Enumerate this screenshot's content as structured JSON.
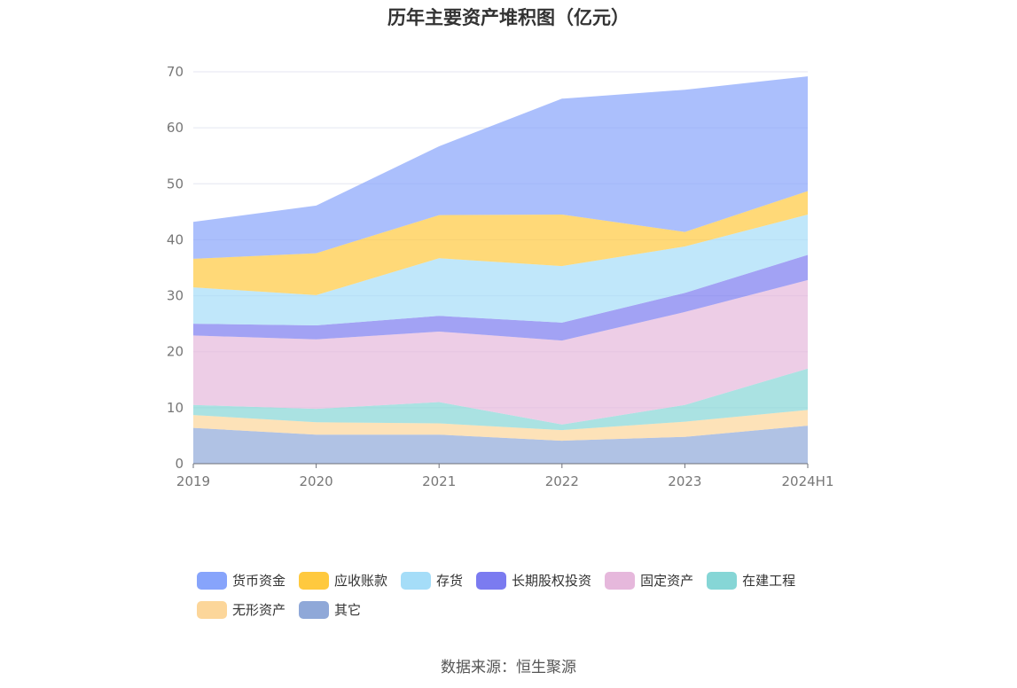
{
  "chart_data": {
    "type": "area",
    "stacked": true,
    "title": "历年主要资产堆积图（亿元）",
    "categories": [
      "2019",
      "2020",
      "2021",
      "2022",
      "2023",
      "2024H1"
    ],
    "ylim": [
      0,
      70
    ],
    "yticks": [
      0,
      10,
      20,
      30,
      40,
      50,
      60,
      70
    ],
    "grid": true,
    "legend_position": "bottom",
    "series": [
      {
        "name": "其它",
        "color": "#8fa8d8",
        "values": [
          6.4,
          5.2,
          5.2,
          4.1,
          4.8,
          6.8
        ]
      },
      {
        "name": "无形资产",
        "color": "#fcd69a",
        "values": [
          2.3,
          2.2,
          2.0,
          1.9,
          2.7,
          2.8
        ]
      },
      {
        "name": "在建工程",
        "color": "#86d6d6",
        "values": [
          1.8,
          2.4,
          3.8,
          1.0,
          3.0,
          7.4
        ]
      },
      {
        "name": "固定资产",
        "color": "#e6b8dc",
        "values": [
          12.4,
          12.4,
          12.6,
          15.0,
          16.6,
          15.8
        ]
      },
      {
        "name": "长期股权投资",
        "color": "#7b7bf0",
        "values": [
          2.1,
          2.5,
          2.8,
          3.2,
          3.4,
          4.5
        ]
      },
      {
        "name": "存货",
        "color": "#a5ddf8",
        "values": [
          6.5,
          5.4,
          10.3,
          10.1,
          8.3,
          7.2
        ]
      },
      {
        "name": "应收账款",
        "color": "#ffc93e",
        "values": [
          5.1,
          7.5,
          7.7,
          9.2,
          2.6,
          4.2
        ]
      },
      {
        "name": "货币资金",
        "color": "#87a4fb",
        "values": [
          6.6,
          8.5,
          12.3,
          20.7,
          25.4,
          20.5
        ]
      }
    ]
  },
  "legend": {
    "row1": [
      "货币资金",
      "应收账款",
      "存货",
      "长期股权投资",
      "固定资产",
      "在建工程"
    ],
    "row2": [
      "无形资产",
      "其它"
    ],
    "colors": {
      "货币资金": "#87a4fb",
      "应收账款": "#ffc93e",
      "存货": "#a5ddf8",
      "长期股权投资": "#7b7bf0",
      "固定资产": "#e6b8dc",
      "在建工程": "#86d6d6",
      "无形资产": "#fcd69a",
      "其它": "#8fa8d8"
    }
  },
  "source": "数据来源：恒生聚源"
}
